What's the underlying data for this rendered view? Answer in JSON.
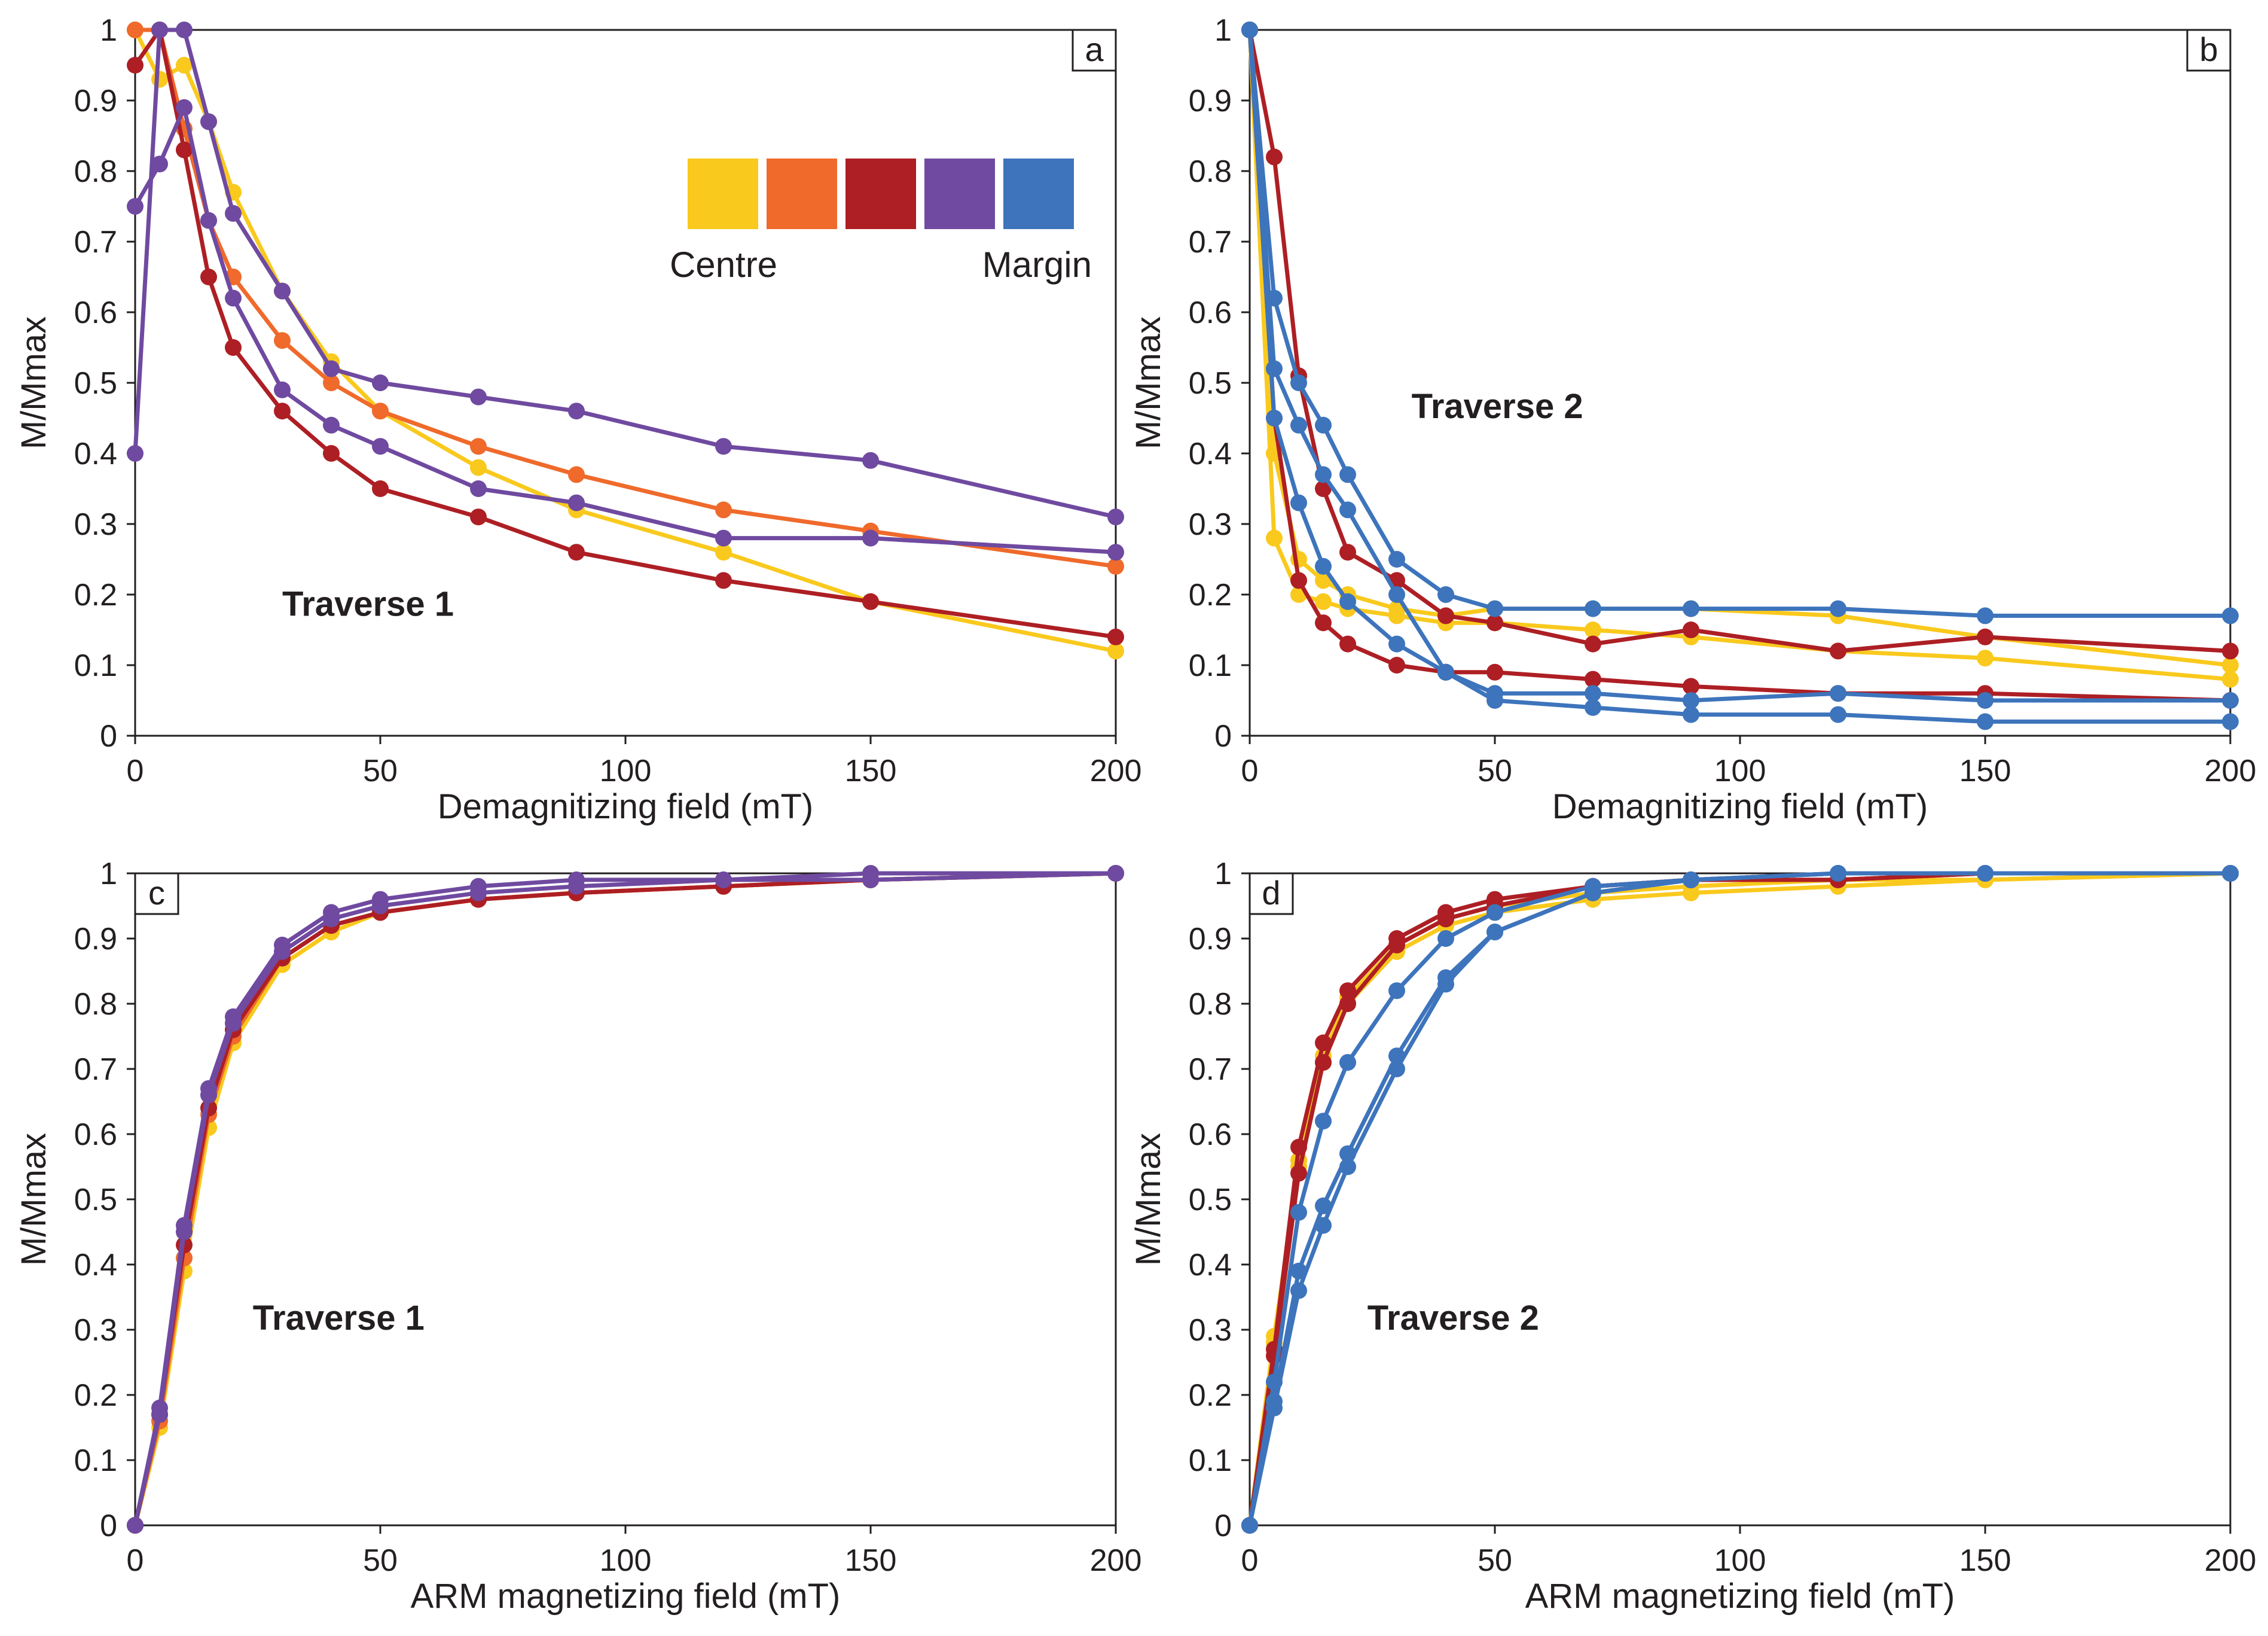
{
  "colors": {
    "yellow": "#f9c91d",
    "orange": "#ef6a2b",
    "darkred": "#ad1f24",
    "purple": "#6f4aa0",
    "blue": "#3d74bc",
    "axis": "#231f20"
  },
  "legend": {
    "left_label": "Centre",
    "right_label": "Margin",
    "swatches": [
      "yellow",
      "orange",
      "darkred",
      "purple",
      "blue"
    ]
  },
  "chart_data": [
    {
      "id": "a",
      "type": "line",
      "panel_label": "a",
      "annotation": "Traverse 1",
      "xlabel": "Demagnitizing field (mT)",
      "ylabel": "M/Mmax",
      "xlim": [
        0,
        200
      ],
      "ylim": [
        0,
        1
      ],
      "xticks": [
        0,
        50,
        100,
        150,
        200
      ],
      "yticks": [
        0,
        0.1,
        0.2,
        0.3,
        0.4,
        0.5,
        0.6,
        0.7,
        0.8,
        0.9,
        1
      ],
      "ytick_labels": [
        "0",
        "0.1",
        "0.2",
        "0.3",
        "0.4",
        "0.5",
        "0.6",
        "0.7",
        "0.8",
        "0.9",
        "1"
      ],
      "series": [
        {
          "name": "centre-1",
          "color": "yellow",
          "x": [
            0,
            5,
            10,
            15,
            20,
            30,
            40,
            50,
            70,
            90,
            120,
            150,
            200
          ],
          "y": [
            1.0,
            0.93,
            0.95,
            0.87,
            0.77,
            0.63,
            0.53,
            0.46,
            0.38,
            0.32,
            0.26,
            0.19,
            0.12
          ]
        },
        {
          "name": "orange-1",
          "color": "orange",
          "x": [
            0,
            5,
            10,
            15,
            20,
            30,
            40,
            50,
            70,
            90,
            120,
            150,
            200
          ],
          "y": [
            1.0,
            1.0,
            0.86,
            0.73,
            0.65,
            0.56,
            0.5,
            0.46,
            0.41,
            0.37,
            0.32,
            0.29,
            0.24
          ]
        },
        {
          "name": "darkred-1",
          "color": "darkred",
          "x": [
            0,
            5,
            10,
            15,
            20,
            30,
            40,
            50,
            70,
            90,
            120,
            150,
            200
          ],
          "y": [
            0.95,
            1.0,
            0.83,
            0.65,
            0.55,
            0.46,
            0.4,
            0.35,
            0.31,
            0.26,
            0.22,
            0.19,
            0.14
          ]
        },
        {
          "name": "purple-1",
          "color": "purple",
          "x": [
            0,
            5,
            10,
            15,
            20,
            30,
            40,
            50,
            70,
            90,
            120,
            150,
            200
          ],
          "y": [
            0.4,
            1.0,
            1.0,
            0.87,
            0.74,
            0.63,
            0.52,
            0.5,
            0.48,
            0.46,
            0.41,
            0.39,
            0.31
          ]
        },
        {
          "name": "purple-2",
          "color": "purple",
          "x": [
            0,
            5,
            10,
            15,
            20,
            30,
            40,
            50,
            70,
            90,
            120,
            150,
            200
          ],
          "y": [
            0.75,
            0.81,
            0.89,
            0.73,
            0.62,
            0.49,
            0.44,
            0.41,
            0.35,
            0.33,
            0.28,
            0.28,
            0.26
          ]
        }
      ]
    },
    {
      "id": "b",
      "type": "line",
      "panel_label": "b",
      "annotation": "Traverse 2",
      "xlabel": "Demagnitizing field (mT)",
      "ylabel": "M/Mmax",
      "xlim": [
        0,
        200
      ],
      "ylim": [
        0,
        1
      ],
      "xticks": [
        0,
        50,
        100,
        150,
        200
      ],
      "yticks": [
        0,
        0.1,
        0.2,
        0.3,
        0.4,
        0.5,
        0.6,
        0.7,
        0.8,
        0.9,
        1
      ],
      "ytick_labels": [
        "0",
        "0.1",
        "0.2",
        "0.3",
        "0.4",
        "0.5",
        "0.6",
        "0.7",
        "0.8",
        "0.9",
        "1"
      ],
      "series": [
        {
          "name": "yellow-1",
          "color": "yellow",
          "x": [
            0,
            5,
            10,
            15,
            20,
            30,
            40,
            50,
            70,
            90,
            120,
            150,
            200
          ],
          "y": [
            1.0,
            0.4,
            0.25,
            0.22,
            0.2,
            0.18,
            0.17,
            0.18,
            0.18,
            0.18,
            0.17,
            0.14,
            0.1
          ]
        },
        {
          "name": "yellow-2",
          "color": "yellow",
          "x": [
            0,
            5,
            10,
            15,
            20,
            30,
            40,
            50,
            70,
            90,
            120,
            150,
            200
          ],
          "y": [
            1.0,
            0.28,
            0.2,
            0.19,
            0.18,
            0.17,
            0.16,
            0.16,
            0.15,
            0.14,
            0.12,
            0.11,
            0.08
          ]
        },
        {
          "name": "darkred-1",
          "color": "darkred",
          "x": [
            0,
            5,
            10,
            15,
            20,
            30,
            40,
            50,
            70,
            90,
            120,
            150,
            200
          ],
          "y": [
            1.0,
            0.82,
            0.51,
            0.35,
            0.26,
            0.22,
            0.17,
            0.16,
            0.13,
            0.15,
            0.12,
            0.14,
            0.12
          ]
        },
        {
          "name": "darkred-2",
          "color": "darkred",
          "x": [
            0,
            5,
            10,
            15,
            20,
            30,
            40,
            50,
            70,
            90,
            120,
            150,
            200
          ],
          "y": [
            1.0,
            0.45,
            0.22,
            0.16,
            0.13,
            0.1,
            0.09,
            0.09,
            0.08,
            0.07,
            0.06,
            0.06,
            0.05
          ]
        },
        {
          "name": "blue-1",
          "color": "blue",
          "x": [
            0,
            5,
            10,
            15,
            20,
            30,
            40,
            50,
            70,
            90,
            120,
            150,
            200
          ],
          "y": [
            1.0,
            0.62,
            0.5,
            0.44,
            0.37,
            0.25,
            0.2,
            0.18,
            0.18,
            0.18,
            0.18,
            0.17,
            0.17
          ]
        },
        {
          "name": "blue-2",
          "color": "blue",
          "x": [
            0,
            5,
            10,
            15,
            20,
            30,
            40,
            50,
            70,
            90,
            120,
            150,
            200
          ],
          "y": [
            1.0,
            0.52,
            0.44,
            0.37,
            0.32,
            0.2,
            0.09,
            0.06,
            0.06,
            0.05,
            0.06,
            0.05,
            0.05
          ]
        },
        {
          "name": "blue-3",
          "color": "blue",
          "x": [
            0,
            5,
            10,
            15,
            20,
            30,
            40,
            50,
            70,
            90,
            120,
            150,
            200
          ],
          "y": [
            1.0,
            0.45,
            0.33,
            0.24,
            0.19,
            0.13,
            0.09,
            0.05,
            0.04,
            0.03,
            0.03,
            0.02,
            0.02
          ]
        }
      ]
    },
    {
      "id": "c",
      "type": "line",
      "panel_label": "c",
      "annotation": "Traverse 1",
      "xlabel": "ARM magnetizing field (mT)",
      "ylabel": "M/Mmax",
      "xlim": [
        0,
        200
      ],
      "ylim": [
        0,
        1
      ],
      "xticks": [
        0,
        50,
        100,
        150,
        200
      ],
      "yticks": [
        0,
        0.1,
        0.2,
        0.3,
        0.4,
        0.5,
        0.6,
        0.7,
        0.8,
        0.9,
        1
      ],
      "ytick_labels": [
        "0",
        "0.1",
        "0.2",
        "0.3",
        "0.4",
        "0.5",
        "0.6",
        "0.7",
        "0.8",
        "0.9",
        "1"
      ],
      "series": [
        {
          "name": "yellow-1",
          "color": "yellow",
          "x": [
            0,
            5,
            10,
            15,
            20,
            30,
            40,
            50,
            70,
            90,
            120,
            150,
            200
          ],
          "y": [
            0,
            0.15,
            0.39,
            0.61,
            0.74,
            0.86,
            0.91,
            0.94,
            0.96,
            0.97,
            0.98,
            0.99,
            1.0
          ]
        },
        {
          "name": "orange-1",
          "color": "orange",
          "x": [
            0,
            5,
            10,
            15,
            20,
            30,
            40,
            50,
            70,
            90,
            120,
            150,
            200
          ],
          "y": [
            0,
            0.16,
            0.41,
            0.63,
            0.75,
            0.87,
            0.92,
            0.94,
            0.96,
            0.97,
            0.98,
            0.99,
            1.0
          ]
        },
        {
          "name": "darkred-1",
          "color": "darkred",
          "x": [
            0,
            5,
            10,
            15,
            20,
            30,
            40,
            50,
            70,
            90,
            120,
            150,
            200
          ],
          "y": [
            0,
            0.17,
            0.43,
            0.64,
            0.76,
            0.87,
            0.92,
            0.94,
            0.96,
            0.97,
            0.98,
            0.99,
            1.0
          ]
        },
        {
          "name": "purple-1",
          "color": "purple",
          "x": [
            0,
            5,
            10,
            15,
            20,
            30,
            40,
            50,
            70,
            90,
            120,
            150,
            200
          ],
          "y": [
            0,
            0.18,
            0.46,
            0.67,
            0.78,
            0.89,
            0.94,
            0.96,
            0.98,
            0.99,
            0.99,
            1.0,
            1.0
          ]
        },
        {
          "name": "purple-2",
          "color": "purple",
          "x": [
            0,
            5,
            10,
            15,
            20,
            30,
            40,
            50,
            70,
            90,
            120,
            150,
            200
          ],
          "y": [
            0,
            0.17,
            0.45,
            0.66,
            0.77,
            0.88,
            0.93,
            0.95,
            0.97,
            0.98,
            0.99,
            0.99,
            1.0
          ]
        }
      ]
    },
    {
      "id": "d",
      "type": "line",
      "panel_label": "d",
      "annotation": "Traverse 2",
      "xlabel": "ARM magnetizing field (mT)",
      "ylabel": "M/Mmax",
      "xlim": [
        0,
        200
      ],
      "ylim": [
        0,
        1
      ],
      "xticks": [
        0,
        50,
        100,
        150,
        200
      ],
      "yticks": [
        0,
        0.1,
        0.2,
        0.3,
        0.4,
        0.5,
        0.6,
        0.7,
        0.8,
        0.9,
        1
      ],
      "ytick_labels": [
        "0",
        "0.1",
        "0.2",
        "0.3",
        "0.4",
        "0.5",
        "0.6",
        "0.7",
        "0.8",
        "0.9",
        "1"
      ],
      "series": [
        {
          "name": "yellow-1",
          "color": "yellow",
          "x": [
            0,
            5,
            10,
            15,
            20,
            30,
            40,
            50,
            70,
            90,
            120,
            150,
            200
          ],
          "y": [
            0,
            0.29,
            0.55,
            0.71,
            0.8,
            0.88,
            0.92,
            0.94,
            0.96,
            0.97,
            0.98,
            0.99,
            1.0
          ]
        },
        {
          "name": "yellow-2",
          "color": "yellow",
          "x": [
            0,
            5,
            10,
            15,
            20,
            30,
            40,
            50,
            70,
            90,
            120,
            150,
            200
          ],
          "y": [
            0,
            0.28,
            0.56,
            0.72,
            0.81,
            0.89,
            0.93,
            0.95,
            0.97,
            0.98,
            0.99,
            0.99,
            1.0
          ]
        },
        {
          "name": "darkred-1",
          "color": "darkred",
          "x": [
            0,
            5,
            10,
            15,
            20,
            30,
            40,
            50,
            70,
            90,
            120,
            150,
            200
          ],
          "y": [
            0,
            0.27,
            0.58,
            0.74,
            0.82,
            0.9,
            0.94,
            0.96,
            0.98,
            0.99,
            0.99,
            1.0,
            1.0
          ]
        },
        {
          "name": "darkred-2",
          "color": "darkred",
          "x": [
            0,
            5,
            10,
            15,
            20,
            30,
            40,
            50,
            70,
            90,
            120,
            150,
            200
          ],
          "y": [
            0,
            0.26,
            0.54,
            0.71,
            0.8,
            0.89,
            0.93,
            0.95,
            0.98,
            0.99,
            0.99,
            1.0,
            1.0
          ]
        },
        {
          "name": "blue-1",
          "color": "blue",
          "x": [
            0,
            5,
            10,
            15,
            20,
            30,
            40,
            50,
            70,
            90,
            120,
            150,
            200
          ],
          "y": [
            0,
            0.22,
            0.48,
            0.62,
            0.71,
            0.82,
            0.9,
            0.94,
            0.98,
            0.99,
            1.0,
            1.0,
            1.0
          ]
        },
        {
          "name": "blue-2",
          "color": "blue",
          "x": [
            0,
            5,
            10,
            15,
            20,
            30,
            40,
            50,
            70,
            90,
            120,
            150,
            200
          ],
          "y": [
            0,
            0.19,
            0.39,
            0.49,
            0.57,
            0.72,
            0.84,
            0.91,
            0.97,
            0.99,
            1.0,
            1.0,
            1.0
          ]
        },
        {
          "name": "blue-3",
          "color": "blue",
          "x": [
            0,
            5,
            10,
            15,
            20,
            30,
            40,
            50,
            70,
            90,
            120,
            150,
            200
          ],
          "y": [
            0,
            0.18,
            0.36,
            0.46,
            0.55,
            0.7,
            0.83,
            0.91,
            0.97,
            0.99,
            1.0,
            1.0,
            1.0
          ]
        }
      ]
    }
  ]
}
